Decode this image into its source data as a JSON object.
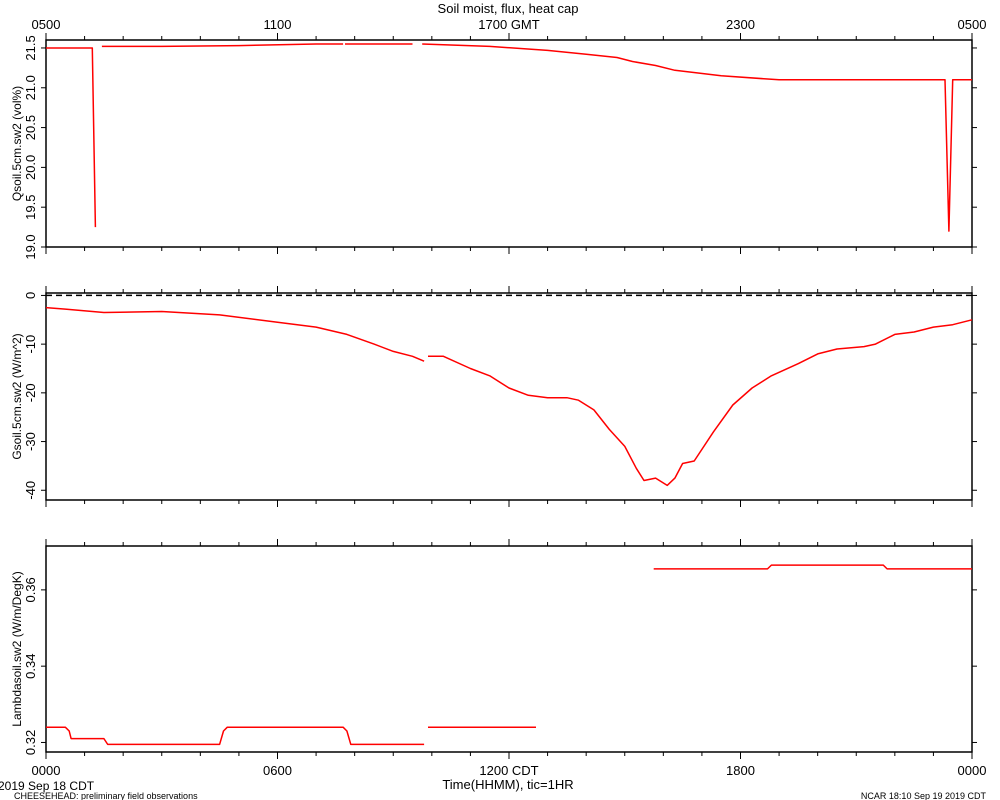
{
  "title": "Soil moist, flux, heat cap",
  "top_axis": {
    "tick_labels": [
      "0500",
      "1100",
      "1700 GMT",
      "2300",
      "0500"
    ]
  },
  "bottom_axis": {
    "tick_labels": [
      "0000",
      "0600",
      "1200 CDT",
      "1800",
      "0000"
    ],
    "label": "Time(HHMM), tic=1HR"
  },
  "footer": {
    "date": "2019 Sep 18 CDT",
    "project": "CHEESEHEAD: preliminary field observations",
    "stamp": "NCAR 18:10 Sep 19 2019 CDT"
  },
  "colors": {
    "series": "#ff0000",
    "axes": "#000000"
  },
  "chart_data": [
    {
      "type": "line",
      "ylabel": "Qsoil.5cm.sw2 (vol%)",
      "ylim": [
        19.0,
        21.6
      ],
      "y_tick_labels": [
        "19.0",
        "19.5",
        "20.0",
        "20.5",
        "21.0",
        "21.5"
      ],
      "xlim_hours": [
        0,
        24
      ],
      "segments": [
        [
          [
            0,
            21.5
          ],
          [
            1.2,
            21.5
          ],
          [
            1.28,
            19.25
          ]
        ],
        [
          [
            1.45,
            21.52
          ],
          [
            3.0,
            21.52
          ],
          [
            5.0,
            21.53
          ],
          [
            7.0,
            21.55
          ],
          [
            7.7,
            21.55
          ]
        ],
        [
          [
            7.75,
            21.55
          ],
          [
            9.5,
            21.55
          ]
        ],
        [
          [
            9.75,
            21.55
          ],
          [
            11.5,
            21.52
          ],
          [
            13.0,
            21.47
          ],
          [
            14.0,
            21.42
          ],
          [
            14.8,
            21.38
          ],
          [
            15.2,
            21.33
          ],
          [
            15.8,
            21.28
          ],
          [
            16.3,
            21.22
          ],
          [
            17.5,
            21.15
          ],
          [
            19.0,
            21.1
          ],
          [
            21.0,
            21.1
          ],
          [
            23.0,
            21.1
          ],
          [
            23.3,
            21.1
          ],
          [
            23.4,
            19.2
          ],
          [
            23.5,
            21.1
          ],
          [
            24.0,
            21.1
          ]
        ]
      ]
    },
    {
      "type": "line",
      "ylabel": "Gsoil.5cm.sw2 (W/m^2)",
      "ylim": [
        -42,
        0.5
      ],
      "y_tick_labels": [
        "0",
        "-10",
        "-20",
        "-30",
        "-40"
      ],
      "zero_line": true,
      "xlim_hours": [
        0,
        24
      ],
      "segments": [
        [
          [
            0,
            -2.5
          ],
          [
            0.5,
            -2.8
          ],
          [
            1.5,
            -3.5
          ],
          [
            3.0,
            -3.3
          ],
          [
            4.5,
            -4.0
          ],
          [
            6.0,
            -5.5
          ],
          [
            7.0,
            -6.5
          ],
          [
            7.8,
            -8.0
          ],
          [
            8.5,
            -10.0
          ],
          [
            9.0,
            -11.5
          ],
          [
            9.5,
            -12.5
          ],
          [
            9.8,
            -13.5
          ]
        ],
        [
          [
            9.9,
            -12.5
          ],
          [
            10.3,
            -12.5
          ],
          [
            11.0,
            -15.0
          ],
          [
            11.5,
            -16.5
          ],
          [
            12.0,
            -19.0
          ],
          [
            12.5,
            -20.5
          ],
          [
            13.0,
            -21.0
          ],
          [
            13.5,
            -21.0
          ],
          [
            13.8,
            -21.5
          ],
          [
            14.2,
            -23.5
          ],
          [
            14.6,
            -27.5
          ],
          [
            15.0,
            -31.0
          ],
          [
            15.3,
            -35.5
          ],
          [
            15.5,
            -38.0
          ],
          [
            15.8,
            -37.5
          ],
          [
            16.1,
            -39.0
          ],
          [
            16.3,
            -37.5
          ],
          [
            16.5,
            -34.5
          ],
          [
            16.8,
            -34.0
          ],
          [
            17.3,
            -28.0
          ],
          [
            17.8,
            -22.5
          ],
          [
            18.3,
            -19.0
          ],
          [
            18.8,
            -16.5
          ],
          [
            19.5,
            -14.0
          ],
          [
            20.0,
            -12.0
          ],
          [
            20.5,
            -11.0
          ],
          [
            21.2,
            -10.5
          ],
          [
            21.5,
            -10.0
          ],
          [
            22.0,
            -8.0
          ],
          [
            22.5,
            -7.5
          ],
          [
            23.0,
            -6.5
          ],
          [
            23.5,
            -6.0
          ],
          [
            24.0,
            -5.0
          ]
        ]
      ]
    },
    {
      "type": "line",
      "ylabel": "Lambdasoil.sw2 (W/m/DegK)",
      "ylim": [
        0.3175,
        0.3715
      ],
      "y_tick_labels": [
        "0.32",
        "0.34",
        "0.36"
      ],
      "xlim_hours": [
        0,
        24
      ],
      "segments": [
        [
          [
            0,
            0.324
          ],
          [
            0.5,
            0.324
          ],
          [
            0.6,
            0.323
          ],
          [
            0.65,
            0.321
          ],
          [
            1.5,
            0.321
          ],
          [
            1.6,
            0.3195
          ],
          [
            4.5,
            0.3195
          ],
          [
            4.6,
            0.323
          ],
          [
            4.7,
            0.324
          ],
          [
            7.7,
            0.324
          ],
          [
            7.8,
            0.323
          ],
          [
            7.9,
            0.3195
          ],
          [
            9.8,
            0.3195
          ]
        ],
        [
          [
            9.9,
            0.324
          ],
          [
            12.7,
            0.324
          ]
        ],
        [
          [
            15.75,
            0.3655
          ],
          [
            18.7,
            0.3655
          ],
          [
            18.8,
            0.3665
          ],
          [
            21.7,
            0.3665
          ],
          [
            21.8,
            0.3655
          ],
          [
            24.0,
            0.3655
          ]
        ]
      ]
    }
  ]
}
